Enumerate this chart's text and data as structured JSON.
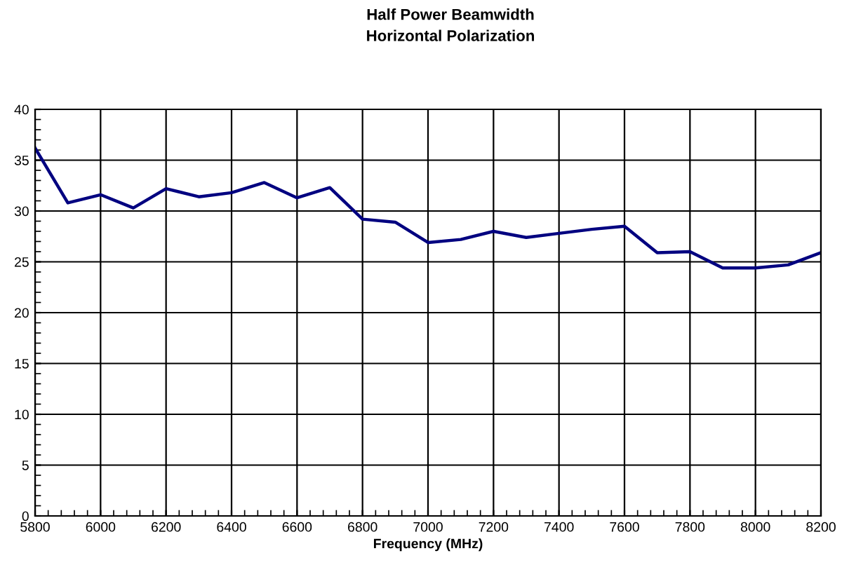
{
  "chart_data": {
    "type": "line",
    "title": "Half Power Beamwidth\nHorizontal Polarization",
    "xlabel": "Frequency (MHz)",
    "x": [
      5800,
      5900,
      6000,
      6100,
      6200,
      6300,
      6400,
      6500,
      6600,
      6700,
      6800,
      6900,
      7000,
      7100,
      7200,
      7300,
      7400,
      7500,
      7600,
      7700,
      7800,
      7900,
      8000,
      8100,
      8200
    ],
    "series": [
      {
        "color": "#000080",
        "values": [
          36.2,
          30.8,
          31.6,
          30.3,
          32.2,
          31.4,
          31.8,
          32.8,
          31.3,
          32.3,
          29.2,
          28.9,
          26.9,
          27.2,
          28.0,
          27.4,
          27.8,
          28.2,
          28.5,
          25.9,
          26.0,
          24.4,
          24.4,
          24.7,
          25.9
        ]
      }
    ],
    "xlim": [
      5800,
      8200
    ],
    "xticks": [
      5800,
      6000,
      6200,
      6400,
      6600,
      6800,
      7000,
      7200,
      7400,
      7600,
      7800,
      8000,
      8200
    ],
    "ylim": [
      0,
      40
    ],
    "yticks": [
      0,
      5,
      10,
      15,
      20,
      25,
      30,
      35,
      40
    ],
    "grid": true,
    "marker": "none",
    "line_style": "solid"
  }
}
